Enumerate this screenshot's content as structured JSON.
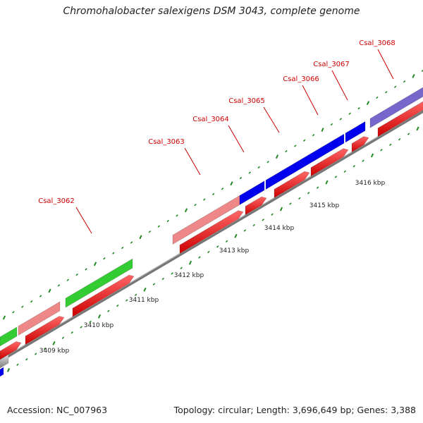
{
  "title": "Chromohalobacter salexigens DSM 3043, complete genome",
  "footer": {
    "accession": "Accession: NC_007963",
    "stats": "Topology: circular; Length: 3,696,649 bp; Genes: 3,388"
  },
  "gene_labels": [
    "Csal_3062",
    "Csal_3063",
    "Csal_3064",
    "Csal_3065",
    "Csal_3066",
    "Csal_3067",
    "Csal_3068"
  ],
  "kbp_ticks": [
    "3409 kbp",
    "3410 kbp",
    "3411 kbp",
    "3412 kbp",
    "3413 kbp",
    "3414 kbp",
    "3415 kbp",
    "3416 kbp"
  ],
  "colors": {
    "cds": "#ff0000",
    "gene_green": "#33cc33",
    "gene_pink": "#ee8888",
    "gene_blue": "#0000ee",
    "gene_purple": "#7766cc",
    "gene_grey": "#bbbbbb",
    "backbone": "#888888",
    "tick": "#228822",
    "label": "#cc0000"
  }
}
